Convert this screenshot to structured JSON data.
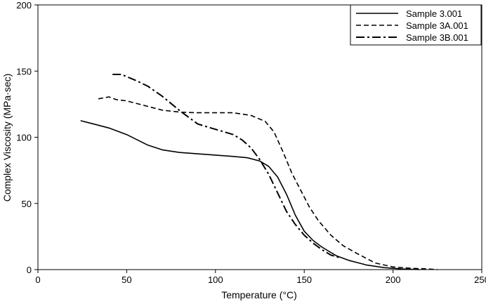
{
  "chart_data": {
    "type": "line",
    "title": "",
    "xlabel": "Temperature (°C)",
    "ylabel": "Complex Viscosity (MPa·sec)",
    "xlim": [
      0,
      250
    ],
    "ylim": [
      0,
      200
    ],
    "x_ticks": [
      0,
      50,
      100,
      150,
      200,
      250
    ],
    "y_ticks": [
      0,
      50,
      100,
      150,
      200
    ],
    "grid": false,
    "legend_position": "top-right",
    "series": [
      {
        "name": "Sample 3.001",
        "style": "solid",
        "x": [
          24,
          30,
          40,
          50,
          62,
          70,
          80,
          90,
          100,
          110,
          118,
          125,
          130,
          135,
          140,
          145,
          150,
          155,
          160,
          168,
          175,
          185,
          195,
          205,
          215
        ],
        "y": [
          112.5,
          110.5,
          107,
          102,
          94,
          90.5,
          88.5,
          87.5,
          86.5,
          85.5,
          84.5,
          82,
          78,
          70,
          57,
          41,
          29,
          22,
          17,
          10.5,
          7,
          3.5,
          1.5,
          0.5,
          0
        ]
      },
      {
        "name": "Sample 3A.001",
        "style": "dashed",
        "x": [
          34,
          40,
          44,
          50,
          60,
          70,
          80,
          90,
          100,
          110,
          120,
          128,
          133,
          138,
          143,
          148,
          153,
          158,
          165,
          172,
          180,
          190,
          200,
          210,
          220,
          225
        ],
        "y": [
          129,
          130.5,
          128.5,
          127.5,
          124,
          120.5,
          119,
          118.5,
          118.5,
          118.5,
          116.5,
          112,
          104,
          89,
          73,
          60,
          47,
          37,
          26,
          18,
          12,
          5,
          2,
          1,
          0.5,
          0
        ]
      },
      {
        "name": "Sample 3B.001",
        "style": "dash-dot",
        "x": [
          42,
          47,
          55,
          62,
          70,
          80,
          90,
          100,
          110,
          115,
          120,
          125,
          130,
          135,
          140,
          145,
          150,
          155,
          160,
          165,
          170
        ],
        "y": [
          147.5,
          147.5,
          143,
          138.5,
          131,
          120,
          110,
          106,
          102,
          98,
          92,
          83,
          72,
          58,
          44,
          34,
          26,
          20,
          15,
          11,
          9
        ]
      }
    ]
  }
}
